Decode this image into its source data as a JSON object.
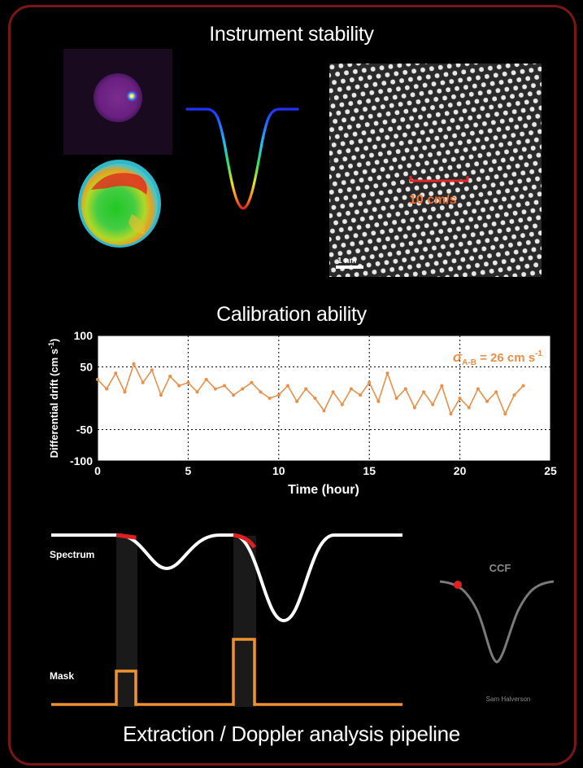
{
  "instrument": {
    "title": "Instrument stability",
    "crystal_scale_label": "10 cm/s",
    "crystal_bar_label": "1 nm"
  },
  "calibration": {
    "title": "Calibration ability",
    "sigma_label_main": "σ",
    "sigma_label_sub": "A-B",
    "sigma_label_value": " = 26 cm s",
    "sigma_label_exp": "-1"
  },
  "pipeline": {
    "title": "Extraction / Doppler analysis pipeline",
    "spectrum_label": "Spectrum",
    "mask_label": "Mask",
    "ccf_label": "CCF",
    "credit": "Sam Halverson"
  },
  "colors": {
    "frame_border": "#7a1616",
    "drift_series": "#e8904a",
    "mask_line": "#f0922e",
    "spectrum_highlight": "#e02020"
  },
  "chart_data": {
    "type": "line",
    "xlabel": "Time (hour)",
    "ylabel": "Differential drift (cm s",
    "ylabel_exp": "-1",
    "ylabel_close": ")",
    "xlim": [
      0,
      25
    ],
    "ylim": [
      -100,
      100
    ],
    "x_ticks": [
      0,
      5,
      10,
      15,
      20,
      25
    ],
    "y_ticks": [
      100,
      50,
      -50,
      -100
    ],
    "grid": true,
    "annotation": "σA-B = 26 cm s-1",
    "series": [
      {
        "x": [
          0,
          0.5,
          1,
          1.5,
          2,
          2.5,
          3,
          3.5,
          4,
          4.5,
          5,
          5.5,
          6,
          6.5,
          7,
          7.5,
          8,
          8.5,
          9,
          9.5,
          10,
          10.5,
          11,
          11.5,
          12,
          12.5,
          13,
          13.5,
          14,
          14.5,
          15,
          15.5,
          16,
          16.5,
          17,
          17.5,
          18,
          18.5,
          19,
          19.5,
          20,
          20.5,
          21,
          21.5,
          22,
          22.5,
          23,
          23.5
        ],
        "values": [
          30,
          15,
          40,
          10,
          55,
          25,
          45,
          5,
          35,
          20,
          25,
          10,
          30,
          15,
          20,
          5,
          15,
          25,
          10,
          0,
          5,
          20,
          -5,
          15,
          0,
          -20,
          10,
          -10,
          15,
          5,
          25,
          -5,
          40,
          0,
          15,
          -15,
          10,
          -10,
          20,
          -25,
          0,
          -15,
          15,
          -5,
          10,
          -25,
          5,
          20
        ]
      }
    ]
  }
}
